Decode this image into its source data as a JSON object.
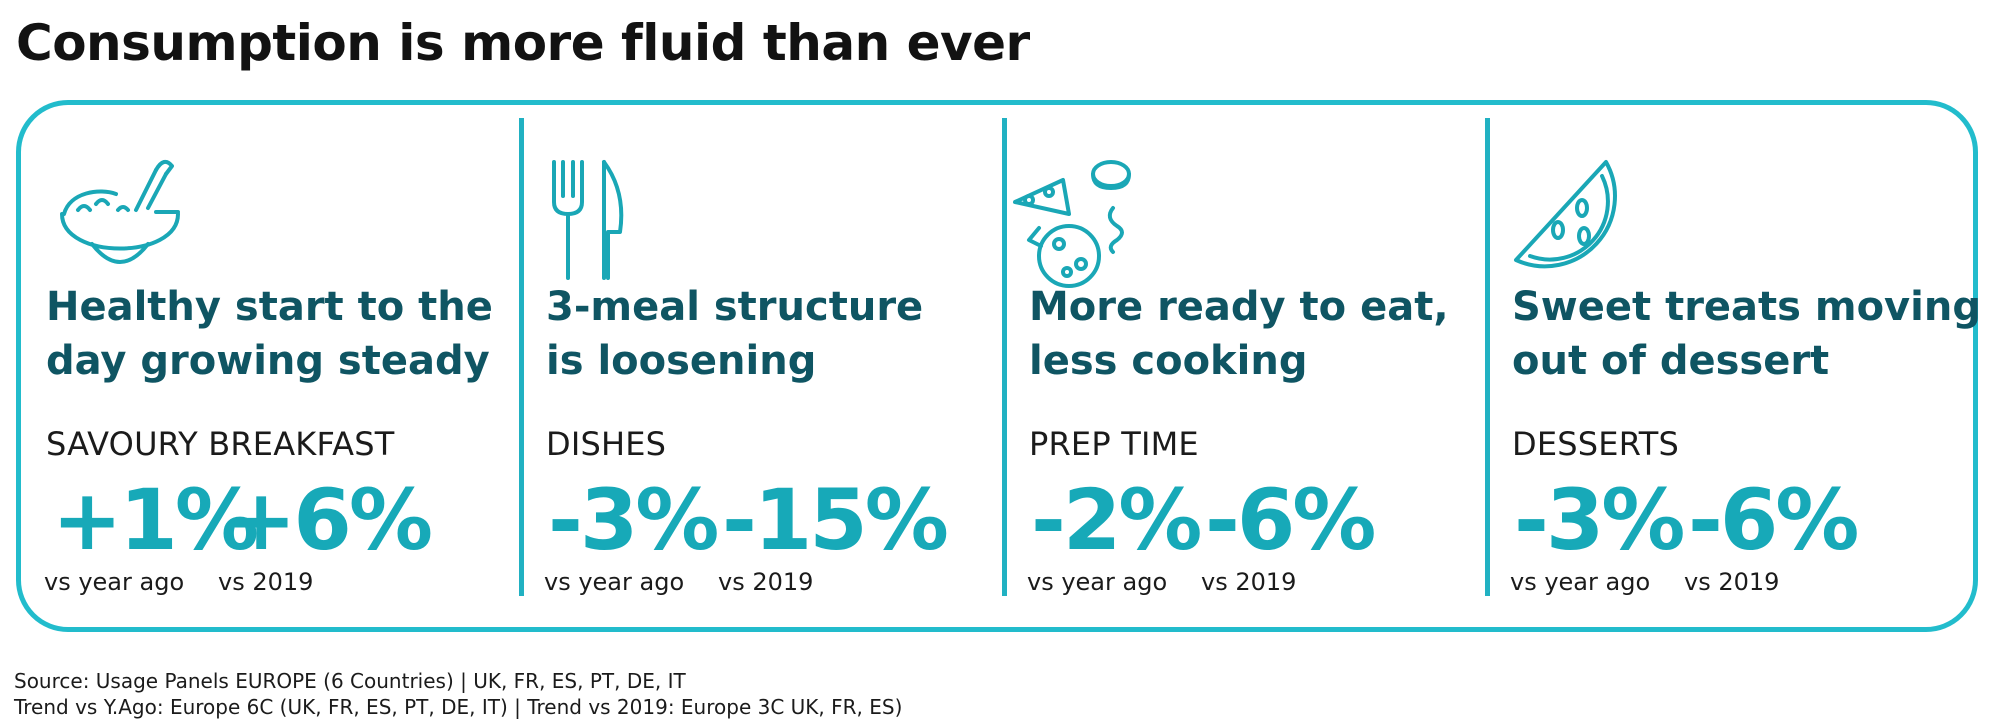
{
  "title": "Consumption is more fluid than ever",
  "panels": [
    {
      "icon": "bowl-spoon-icon",
      "heading_line1": "Healthy start to the",
      "heading_line2": "day growing steady",
      "metric": "SAVOURY BREAKFAST",
      "value1": "+1%",
      "caption1": "vs year ago",
      "value2": "+6%",
      "caption2": "vs 2019"
    },
    {
      "icon": "fork-knife-icon",
      "heading_line1": "3-meal structure",
      "heading_line2": "is loosening",
      "metric": "DISHES",
      "value1": "-3%",
      "caption1": "vs year ago",
      "value2": "-15%",
      "caption2": "vs 2019"
    },
    {
      "icon": "snacks-icon",
      "heading_line1": "More ready to eat,",
      "heading_line2": "less cooking",
      "metric": "PREP TIME",
      "value1": "-2%",
      "caption1": "vs year ago",
      "value2": "-6%",
      "caption2": "vs 2019"
    },
    {
      "icon": "watermelon-slice-icon",
      "heading_line1": "Sweet treats moving",
      "heading_line2": "out of dessert",
      "metric": "DESSERTS",
      "value1": "-3%",
      "caption1": "vs year ago",
      "value2": "-6%",
      "caption2": "vs 2019"
    }
  ],
  "source": {
    "line1": "Source: Usage Panels EUROPE (6 Countries) | UK, FR, ES, PT, DE, IT",
    "line2": "Trend vs Y.Ago: Europe 6C (UK, FR, ES, PT, DE, IT)  | Trend vs 2019: Europe 3C UK, FR, ES)"
  },
  "colors": {
    "accent": "#17a9b8",
    "heading": "#0f5563",
    "border": "#22bccc"
  }
}
